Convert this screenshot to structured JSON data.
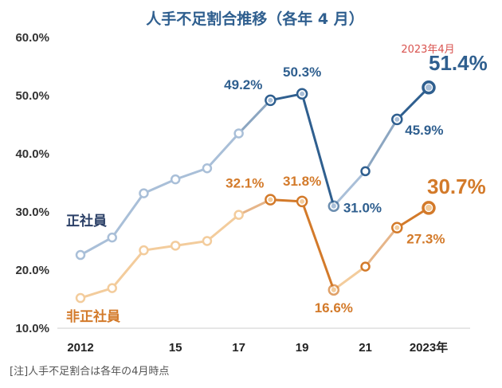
{
  "chart_data": {
    "type": "line",
    "title": "人手不足割合推移（各年 4 月）",
    "x": [
      2012,
      2013,
      2014,
      2015,
      2016,
      2017,
      2018,
      2019,
      2020,
      2021,
      2022,
      2023
    ],
    "x_tick_labels": [
      "2012",
      "15",
      "17",
      "19",
      "21",
      "2023年"
    ],
    "y_tick_labels": [
      "10.0%",
      "20.0%",
      "30.0%",
      "40.0%",
      "50.0%",
      "60.0%"
    ],
    "ylim": [
      10,
      60
    ],
    "series": [
      {
        "name": "正社員",
        "color": "#2f5f8f",
        "light_color": "#a9bfd8",
        "values": [
          22.6,
          25.6,
          33.2,
          35.6,
          37.5,
          43.5,
          49.2,
          50.3,
          31.0,
          37.0,
          45.9,
          51.4
        ],
        "point_labels": {
          "6": "49.2%",
          "7": "50.3%",
          "8": "31.0%",
          "10": "45.9%",
          "11": "51.4%"
        }
      },
      {
        "name": "非正社員",
        "color": "#d37a2a",
        "light_color": "#f3cc9c",
        "values": [
          15.2,
          16.9,
          23.4,
          24.2,
          25.0,
          29.5,
          32.1,
          31.8,
          16.6,
          20.6,
          27.3,
          30.7
        ],
        "point_labels": {
          "6": "32.1%",
          "7": "31.8%",
          "8": "16.6%",
          "10": "27.3%",
          "11": "30.7%"
        }
      }
    ],
    "annotation": "2023年4月",
    "note": "[注]人手不足割合は各年の4月時点",
    "grid": false
  }
}
